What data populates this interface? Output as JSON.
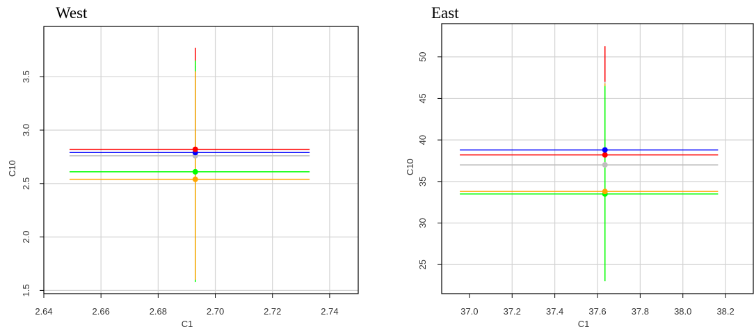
{
  "chart_data": [
    {
      "type": "scatter",
      "title": "West",
      "xlabel": "C1",
      "ylabel": "C10",
      "xlim": [
        2.64,
        2.75
      ],
      "ylim": [
        1.47,
        3.97
      ],
      "xticks": [
        2.64,
        2.66,
        2.68,
        2.7,
        2.72,
        2.74
      ],
      "xtick_labels": [
        "2.64",
        "2.66",
        "2.68",
        "2.70",
        "2.72",
        "2.74"
      ],
      "yticks": [
        1.5,
        2.0,
        2.5,
        3.0,
        3.5
      ],
      "ytick_labels": [
        "1.5",
        "2.0",
        "2.5",
        "3.0",
        "3.5"
      ],
      "grid": true,
      "series": [
        {
          "color": "#ff0000",
          "x": 2.693,
          "y": 2.82,
          "xerr": [
            2.649,
            2.733
          ],
          "yerr": [
            2.77,
            3.77
          ]
        },
        {
          "color": "#0000ff",
          "x": 2.693,
          "y": 2.79,
          "xerr": [
            2.649,
            2.733
          ],
          "yerr": [
            2.77,
            3.6
          ]
        },
        {
          "color": "#bebebe",
          "x": 2.693,
          "y": 2.76,
          "xerr": [
            2.649,
            2.733
          ],
          "yerr": [
            1.59,
            3.58
          ]
        },
        {
          "color": "#00ff00",
          "x": 2.693,
          "y": 2.61,
          "xerr": [
            2.649,
            2.733
          ],
          "yerr": [
            1.58,
            3.65
          ]
        },
        {
          "color": "#ffa500",
          "x": 2.693,
          "y": 2.54,
          "xerr": [
            2.649,
            2.733
          ],
          "yerr": [
            1.6,
            3.55
          ]
        }
      ]
    },
    {
      "type": "scatter",
      "title": "East",
      "xlabel": "C1",
      "ylabel": "C10",
      "xlim": [
        36.87,
        38.33
      ],
      "ylim": [
        21.5,
        54.0
      ],
      "xticks": [
        37.0,
        37.2,
        37.4,
        37.6,
        37.8,
        38.0,
        38.2
      ],
      "xtick_labels": [
        "37.0",
        "37.2",
        "37.4",
        "37.6",
        "37.8",
        "38.0",
        "38.2"
      ],
      "yticks": [
        25,
        30,
        35,
        40,
        45,
        50
      ],
      "ytick_labels": [
        "25",
        "30",
        "35",
        "40",
        "45",
        "50"
      ],
      "grid": true,
      "series": [
        {
          "color": "#0000ff",
          "x": 37.635,
          "y": 38.8,
          "xerr": [
            36.955,
            38.165
          ],
          "yerr": [
            38.8,
            50.3
          ]
        },
        {
          "color": "#ff0000",
          "x": 37.635,
          "y": 38.2,
          "xerr": [
            36.955,
            38.165
          ],
          "yerr": [
            38.2,
            51.3
          ]
        },
        {
          "color": "#bebebe",
          "x": 37.635,
          "y": 37.0,
          "xerr": [
            36.955,
            38.165
          ],
          "yerr": [
            23.0,
            47.0
          ]
        },
        {
          "color": "#ffa500",
          "x": 37.635,
          "y": 33.8,
          "xerr": [
            36.955,
            38.165
          ],
          "yerr": [
            23.6,
            46.8
          ]
        },
        {
          "color": "#00ff00",
          "x": 37.635,
          "y": 33.5,
          "xerr": [
            36.955,
            38.165
          ],
          "yerr": [
            23.0,
            46.5
          ]
        }
      ]
    }
  ]
}
